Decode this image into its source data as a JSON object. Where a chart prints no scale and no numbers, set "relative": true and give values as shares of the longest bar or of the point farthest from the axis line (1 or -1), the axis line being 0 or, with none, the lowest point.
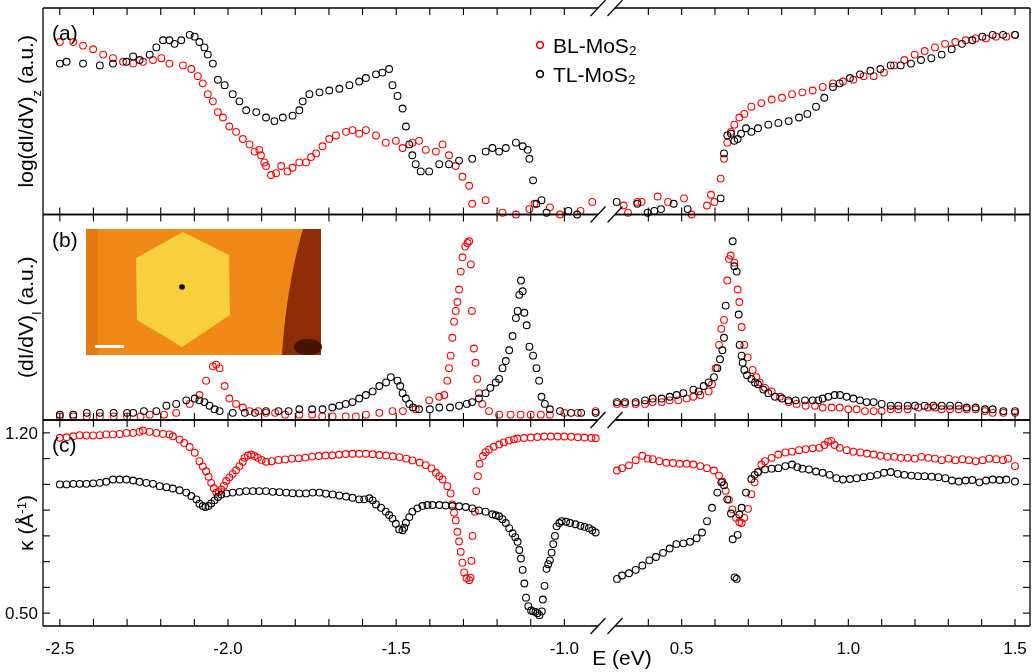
{
  "chart_data": [
    {
      "type": "scatter",
      "title": "(a)",
      "ylabel": "log(dI/dV)$_{z}$ (a.u.)",
      "relative": true,
      "marker": "circle",
      "legend": "top right",
      "tick_labels": false,
      "xlim": [
        -2.55,
        -0.9
      ],
      "xticks": [
        -2.5,
        -2.4,
        -2.3,
        -2.2,
        -2.1,
        -2.0,
        -1.9,
        -1.8,
        -1.7,
        -1.6,
        -1.5,
        -1.4,
        -1.3,
        -1.2,
        -1.1,
        -1.0
      ],
      "series": [
        {
          "name": "BL-MoS₂",
          "color": "#ff0000",
          "x": [
            -2.5,
            -2.46,
            -2.431,
            -2.401,
            -2.371,
            -2.342,
            -2.312,
            -2.282,
            -2.253,
            -2.223,
            -2.198,
            -2.174,
            -2.134,
            -2.109,
            -2.09,
            -2.075,
            -2.06,
            -2.045,
            -2.03,
            -2.015,
            -1.996,
            -1.976,
            -1.956,
            -1.936,
            -1.921,
            -1.907,
            -1.902,
            -1.892,
            -1.887,
            -1.872,
            -1.857,
            -1.842,
            -1.823,
            -1.808,
            -1.788,
            -1.768,
            -1.753,
            -1.738,
            -1.719,
            -1.699,
            -1.679,
            -1.649,
            -1.63,
            -1.61,
            -1.59,
            -1.56,
            -1.531,
            -1.501,
            -1.481,
            -1.452,
            -1.432,
            -1.412,
            -1.382,
            -1.362,
            -1.343,
            -1.323,
            -1.303,
            -1.283,
            -1.274,
            -1.234,
            -1.184,
            -1.144,
            -1.104,
            -1.089,
            -1.043,
            -1.013,
            -0.952,
            -0.917
          ],
          "values": [
            0.96,
            0.96,
            0.94,
            0.92,
            0.89,
            0.87,
            0.85,
            0.84,
            0.85,
            0.86,
            0.87,
            0.84,
            0.83,
            0.81,
            0.77,
            0.73,
            0.67,
            0.63,
            0.57,
            0.54,
            0.49,
            0.46,
            0.42,
            0.39,
            0.35,
            0.36,
            0.33,
            0.29,
            0.27,
            0.22,
            0.23,
            0.27,
            0.24,
            0.26,
            0.29,
            0.29,
            0.32,
            0.34,
            0.38,
            0.42,
            0.44,
            0.46,
            0.47,
            0.45,
            0.47,
            0.44,
            0.4,
            0.41,
            0.37,
            0.4,
            0.41,
            0.36,
            0.35,
            0.39,
            0.33,
            0.27,
            0.21,
            0.16,
            0.06,
            0.08,
            0.01,
            0.0,
            0.03,
            0.06,
            0.04,
            0.0,
            0.02,
            0.07
          ]
        },
        {
          "name": "TL-MoS₂",
          "color": "#000000",
          "x": [
            -2.5,
            -2.48,
            -2.431,
            -2.381,
            -2.342,
            -2.302,
            -2.282,
            -2.263,
            -2.233,
            -2.213,
            -2.193,
            -2.174,
            -2.159,
            -2.139,
            -2.114,
            -2.099,
            -2.085,
            -2.07,
            -2.06,
            -2.045,
            -2.03,
            -2.01,
            -1.986,
            -1.966,
            -1.946,
            -1.916,
            -1.887,
            -1.862,
            -1.837,
            -1.808,
            -1.788,
            -1.778,
            -1.758,
            -1.728,
            -1.699,
            -1.669,
            -1.639,
            -1.61,
            -1.59,
            -1.56,
            -1.541,
            -1.521,
            -1.511,
            -1.496,
            -1.481,
            -1.471,
            -1.461,
            -1.452,
            -1.442,
            -1.427,
            -1.402,
            -1.372,
            -1.343,
            -1.313,
            -1.274,
            -1.234,
            -1.214,
            -1.194,
            -1.174,
            -1.144,
            -1.124,
            -1.109,
            -1.104,
            -1.093,
            -1.083,
            -1.068,
            -1.053,
            -0.988,
            -0.962
          ],
          "values": [
            0.84,
            0.85,
            0.84,
            0.83,
            0.84,
            0.85,
            0.88,
            0.86,
            0.89,
            0.93,
            0.97,
            0.97,
            0.95,
            0.97,
            1,
            0.99,
            0.96,
            0.93,
            0.89,
            0.84,
            0.75,
            0.72,
            0.67,
            0.63,
            0.58,
            0.57,
            0.54,
            0.52,
            0.54,
            0.55,
            0.58,
            0.63,
            0.67,
            0.68,
            0.69,
            0.7,
            0.72,
            0.74,
            0.76,
            0.78,
            0.79,
            0.81,
            0.72,
            0.66,
            0.59,
            0.49,
            0.39,
            0.33,
            0.28,
            0.24,
            0.24,
            0.28,
            0.28,
            0.3,
            0.31,
            0.35,
            0.37,
            0.35,
            0.37,
            0.4,
            0.38,
            0.36,
            0.31,
            0.19,
            0.06,
            0.08,
            0.01,
            0.02,
            0.0
          ]
        }
      ]
    },
    {
      "type": "scatter",
      "relative": true,
      "marker": "circle",
      "tick_labels": false,
      "xlim": [
        0.3,
        1.545
      ],
      "xticks": [
        0.4,
        0.5,
        0.6,
        0.7,
        0.8,
        0.9,
        1.0,
        1.1,
        1.2,
        1.3,
        1.4,
        1.5
      ],
      "series": [
        {
          "color": "#ff0000",
          "x": [
            0.326,
            0.339,
            0.367,
            0.38,
            0.428,
            0.459,
            0.507,
            0.53,
            0.576,
            0.588,
            0.598,
            0.617,
            0.627,
            0.637,
            0.648,
            0.658,
            0.673,
            0.688,
            0.709,
            0.739,
            0.77,
            0.801,
            0.831,
            0.862,
            0.893,
            0.923,
            0.954,
            0.984,
            1.015,
            1.046,
            1.076,
            1.107,
            1.137,
            1.168,
            1.199,
            1.229,
            1.26,
            1.29,
            1.321,
            1.352,
            1.382,
            1.413,
            1.443,
            1.474,
            1.5
          ],
          "values": [
            0.05,
            0.01,
            0.07,
            0.07,
            0.1,
            0.07,
            0.09,
            0.0,
            0.05,
            0.11,
            0.07,
            0.2,
            0.31,
            0.4,
            0.46,
            0.5,
            0.54,
            0.56,
            0.6,
            0.62,
            0.64,
            0.65,
            0.67,
            0.68,
            0.69,
            0.71,
            0.73,
            0.74,
            0.75,
            0.77,
            0.77,
            0.79,
            0.83,
            0.86,
            0.89,
            0.91,
            0.93,
            0.95,
            0.96,
            0.97,
            0.98,
            0.98,
            0.99,
            0.99,
            1
          ]
        },
        {
          "color": "#000000",
          "x": [
            0.305,
            0.367,
            0.398,
            0.418,
            0.438,
            0.476,
            0.518,
            0.617,
            0.627,
            0.637,
            0.648,
            0.658,
            0.668,
            0.678,
            0.693,
            0.709,
            0.729,
            0.76,
            0.79,
            0.821,
            0.852,
            0.877,
            0.903,
            0.928,
            0.954,
            0.974,
            1.005,
            1.035,
            1.066,
            1.096,
            1.127,
            1.157,
            1.188,
            1.218,
            1.249,
            1.28,
            1.31,
            1.341,
            1.372,
            1.402,
            1.433,
            1.464,
            1.5
          ],
          "values": [
            0.07,
            0.06,
            0.01,
            0.02,
            0.03,
            0.06,
            0.03,
            0.09,
            0.34,
            0.44,
            0.45,
            0.41,
            0.42,
            0.45,
            0.48,
            0.46,
            0.48,
            0.5,
            0.51,
            0.52,
            0.54,
            0.56,
            0.6,
            0.65,
            0.71,
            0.73,
            0.76,
            0.78,
            0.8,
            0.81,
            0.83,
            0.83,
            0.84,
            0.86,
            0.87,
            0.89,
            0.92,
            0.95,
            0.97,
            0.99,
            1,
            1,
            1
          ]
        }
      ]
    },
    {
      "type": "scatter",
      "title": "(b)",
      "ylabel": "(dI/dV)$_{I}$ (a.u.)",
      "relative": true,
      "marker": "circle",
      "tick_labels": false,
      "xlim": [
        -2.55,
        -0.9
      ],
      "xticks": [
        -2.5,
        -2.4,
        -2.3,
        -2.2,
        -2.1,
        -2.0,
        -1.9,
        -1.8,
        -1.7,
        -1.6,
        -1.5,
        -1.4,
        -1.3,
        -1.2,
        -1.1,
        -1.0
      ],
      "series": [
        {
          "color": "#ff0000",
          "x": [
            -2.5,
            -2.46,
            -2.42,
            -2.381,
            -2.34,
            -2.3,
            -2.26,
            -2.233,
            -2.19,
            -2.154,
            -2.114,
            -2.085,
            -2.065,
            -2.045,
            -2.035,
            -2.025,
            -2.01,
            -1.996,
            -1.976,
            -1.956,
            -1.936,
            -1.91,
            -1.887,
            -1.86,
            -1.83,
            -1.788,
            -1.75,
            -1.72,
            -1.689,
            -1.65,
            -1.62,
            -1.59,
            -1.55,
            -1.511,
            -1.48,
            -1.442,
            -1.402,
            -1.372,
            -1.357,
            -1.348,
            -1.343,
            -1.338,
            -1.333,
            -1.328,
            -1.323,
            -1.318,
            -1.313,
            -1.308,
            -1.303,
            -1.295,
            -1.288,
            -1.283,
            -1.278,
            -1.275,
            -1.269,
            -1.264,
            -1.259,
            -1.254,
            -1.244,
            -1.224,
            -1.194,
            -1.16,
            -1.13,
            -1.1,
            -1.07,
            -1.043,
            -1.0,
            -0.96,
            -0.907
          ],
          "values": [
            0.02,
            0.02,
            0.02,
            0.02,
            0.02,
            0.02,
            0.02,
            0.03,
            0.03,
            0.04,
            0.09,
            0.14,
            0.22,
            0.3,
            0.31,
            0.29,
            0.19,
            0.12,
            0.09,
            0.07,
            0.05,
            0.05,
            0.04,
            0.04,
            0.03,
            0.03,
            0.03,
            0.02,
            0.02,
            0.02,
            0.02,
            0.03,
            0.04,
            0.05,
            0.05,
            0.06,
            0.11,
            0.13,
            0.14,
            0.22,
            0.29,
            0.36,
            0.46,
            0.55,
            0.61,
            0.66,
            0.73,
            0.83,
            0.91,
            0.97,
            0.99,
            1,
            0.87,
            0.61,
            0.4,
            0.32,
            0.23,
            0.15,
            0.09,
            0.05,
            0.03,
            0.03,
            0.03,
            0.03,
            0.03,
            0.03,
            0.04,
            0.04,
            0.05
          ]
        },
        {
          "color": "#000000",
          "x": [
            -2.5,
            -2.46,
            -2.42,
            -2.381,
            -2.34,
            -2.3,
            -2.282,
            -2.25,
            -2.213,
            -2.183,
            -2.154,
            -2.124,
            -2.099,
            -2.085,
            -2.07,
            -2.055,
            -2.04,
            -2.025,
            -1.986,
            -1.95,
            -1.92,
            -1.887,
            -1.85,
            -1.82,
            -1.788,
            -1.75,
            -1.719,
            -1.69,
            -1.669,
            -1.65,
            -1.63,
            -1.61,
            -1.59,
            -1.57,
            -1.55,
            -1.53,
            -1.516,
            -1.496,
            -1.488,
            -1.481,
            -1.471,
            -1.461,
            -1.45,
            -1.432,
            -1.4,
            -1.372,
            -1.34,
            -1.313,
            -1.29,
            -1.274,
            -1.254,
            -1.234,
            -1.22,
            -1.204,
            -1.194,
            -1.184,
            -1.174,
            -1.164,
            -1.154,
            -1.144,
            -1.139,
            -1.134,
            -1.129,
            -1.124,
            -1.119,
            -1.112,
            -1.104,
            -1.093,
            -1.083,
            -1.075,
            -1.068,
            -1.058,
            -1.043,
            -1.013,
            -0.98,
            -0.95,
            -0.907
          ],
          "values": [
            0.03,
            0.03,
            0.04,
            0.04,
            0.04,
            0.04,
            0.04,
            0.05,
            0.05,
            0.08,
            0.09,
            0.11,
            0.12,
            0.11,
            0.1,
            0.08,
            0.06,
            0.05,
            0.04,
            0.04,
            0.04,
            0.05,
            0.05,
            0.05,
            0.06,
            0.06,
            0.06,
            0.07,
            0.08,
            0.09,
            0.1,
            0.12,
            0.14,
            0.16,
            0.19,
            0.21,
            0.24,
            0.22,
            0.19,
            0.15,
            0.12,
            0.09,
            0.07,
            0.06,
            0.06,
            0.07,
            0.07,
            0.08,
            0.09,
            0.1,
            0.12,
            0.15,
            0.18,
            0.21,
            0.23,
            0.29,
            0.33,
            0.39,
            0.47,
            0.57,
            0.61,
            0.7,
            0.78,
            0.72,
            0.6,
            0.53,
            0.41,
            0.36,
            0.29,
            0.22,
            0.13,
            0.09,
            0.06,
            0.05,
            0.04,
            0.04,
            0.04
          ]
        }
      ]
    },
    {
      "type": "scatter",
      "relative": true,
      "marker": "circle",
      "tick_labels": false,
      "xlim": [
        0.3,
        1.545
      ],
      "xticks": [
        0.4,
        0.5,
        0.6,
        0.7,
        0.8,
        0.9,
        1.0,
        1.1,
        1.2,
        1.3,
        1.4,
        1.5
      ],
      "series": [
        {
          "color": "#ff0000",
          "x": [
            0.306,
            0.33,
            0.362,
            0.39,
            0.413,
            0.44,
            0.464,
            0.49,
            0.515,
            0.535,
            0.556,
            0.581,
            0.591,
            0.602,
            0.612,
            0.619,
            0.627,
            0.637,
            0.642,
            0.647,
            0.658,
            0.668,
            0.673,
            0.68,
            0.688,
            0.698,
            0.713,
            0.724,
            0.734,
            0.75,
            0.77,
            0.795,
            0.821,
            0.845,
            0.872,
            0.9,
            0.923,
            0.95,
            0.974,
            1.0,
            1.025,
            1.05,
            1.076,
            1.1,
            1.127,
            1.15,
            1.178,
            1.21,
            1.239,
            1.26,
            1.28,
            1.305,
            1.331,
            1.355,
            1.382,
            1.41,
            1.433,
            1.465,
            1.5
          ],
          "values": [
            0.09,
            0.09,
            0.09,
            0.09,
            0.1,
            0.1,
            0.11,
            0.11,
            0.12,
            0.13,
            0.14,
            0.16,
            0.2,
            0.29,
            0.42,
            0.51,
            0.56,
            0.78,
            0.9,
            0.92,
            0.88,
            0.73,
            0.66,
            0.52,
            0.42,
            0.35,
            0.28,
            0.24,
            0.21,
            0.18,
            0.16,
            0.13,
            0.1,
            0.09,
            0.08,
            0.08,
            0.07,
            0.07,
            0.07,
            0.06,
            0.06,
            0.05,
            0.05,
            0.05,
            0.06,
            0.06,
            0.06,
            0.07,
            0.07,
            0.07,
            0.06,
            0.06,
            0.06,
            0.06,
            0.06,
            0.05,
            0.04,
            0.04,
            0.04
          ]
        },
        {
          "color": "#000000",
          "x": [
            0.306,
            0.33,
            0.362,
            0.39,
            0.413,
            0.44,
            0.464,
            0.485,
            0.505,
            0.535,
            0.551,
            0.566,
            0.581,
            0.597,
            0.607,
            0.615,
            0.622,
            0.627,
            0.632,
            0.653,
            0.658,
            0.665,
            0.671,
            0.674,
            0.68,
            0.683,
            0.688,
            0.696,
            0.709,
            0.72,
            0.729,
            0.745,
            0.76,
            0.78,
            0.801,
            0.82,
            0.842,
            0.87,
            0.893,
            0.91,
            0.923,
            0.94,
            0.959,
            0.975,
            0.995,
            1.015,
            1.035,
            1.055,
            1.076,
            1.1,
            1.127,
            1.15,
            1.178,
            1.2,
            1.229,
            1.255,
            1.28,
            1.305,
            1.331,
            1.355,
            1.382,
            1.41,
            1.433,
            1.465,
            1.5
          ],
          "values": [
            0.1,
            0.1,
            0.1,
            0.11,
            0.12,
            0.12,
            0.13,
            0.14,
            0.15,
            0.17,
            0.16,
            0.19,
            0.21,
            0.24,
            0.29,
            0.34,
            0.39,
            0.46,
            0.64,
            1,
            0.86,
            0.83,
            0.59,
            0.42,
            0.36,
            0.32,
            0.28,
            0.25,
            0.23,
            0.21,
            0.2,
            0.17,
            0.15,
            0.13,
            0.12,
            0.11,
            0.11,
            0.11,
            0.11,
            0.11,
            0.12,
            0.13,
            0.14,
            0.14,
            0.13,
            0.12,
            0.11,
            0.1,
            0.1,
            0.09,
            0.08,
            0.08,
            0.08,
            0.08,
            0.08,
            0.08,
            0.08,
            0.08,
            0.08,
            0.07,
            0.07,
            0.06,
            0.06,
            0.05,
            0.05
          ]
        }
      ]
    },
    {
      "type": "scatter",
      "title": "(c)",
      "ylabel": "κ (Å$^{-1}$)",
      "marker": "circle",
      "xlim": [
        -2.55,
        -0.9
      ],
      "ylim": [
        0.45,
        1.25
      ],
      "xticks": [
        {
          "value": -2.5,
          "label": "-2.5"
        },
        {
          "value": -2.4,
          "label": null
        },
        {
          "value": -2.3,
          "label": null
        },
        {
          "value": -2.2,
          "label": null
        },
        {
          "value": -2.1,
          "label": null
        },
        {
          "value": -2.0,
          "label": "-2.0"
        },
        {
          "value": -1.9,
          "label": null
        },
        {
          "value": -1.8,
          "label": null
        },
        {
          "value": -1.7,
          "label": null
        },
        {
          "value": -1.6,
          "label": null
        },
        {
          "value": -1.5,
          "label": "-1.5"
        },
        {
          "value": -1.4,
          "label": null
        },
        {
          "value": -1.3,
          "label": null
        },
        {
          "value": -1.2,
          "label": null
        },
        {
          "value": -1.1,
          "label": null
        },
        {
          "value": -1.0,
          "label": "-1.0"
        }
      ],
      "yticks": [
        {
          "value": 1.2,
          "label": "1.20"
        },
        {
          "value": 1.1,
          "label": null
        },
        {
          "value": 1.0,
          "label": null
        },
        {
          "value": 0.9,
          "label": null
        },
        {
          "value": 0.8,
          "label": null
        },
        {
          "value": 0.7,
          "label": null
        },
        {
          "value": 0.6,
          "label": null
        },
        {
          "value": 0.5,
          "label": "0.50"
        }
      ],
      "series": [
        {
          "color": "#ff0000",
          "x": [
            -2.5,
            -2.48,
            -2.46,
            -2.441,
            -2.421,
            -2.401,
            -2.381,
            -2.362,
            -2.342,
            -2.322,
            -2.302,
            -2.282,
            -2.263,
            -2.253,
            -2.233,
            -2.213,
            -2.193,
            -2.174,
            -2.164,
            -2.144,
            -2.13,
            -2.114,
            -2.099,
            -2.085,
            -2.075,
            -2.065,
            -2.058,
            -2.05,
            -2.042,
            -2.035,
            -2.028,
            -2.02,
            -2.012,
            -2.005,
            -1.996,
            -1.986,
            -1.976,
            -1.966,
            -1.956,
            -1.951,
            -1.941,
            -1.931,
            -1.921,
            -1.911,
            -1.9,
            -1.887,
            -1.87,
            -1.85,
            -1.83,
            -1.81,
            -1.79,
            -1.77,
            -1.75,
            -1.73,
            -1.71,
            -1.69,
            -1.67,
            -1.65,
            -1.63,
            -1.61,
            -1.59,
            -1.57,
            -1.55,
            -1.53,
            -1.51,
            -1.49,
            -1.47,
            -1.452,
            -1.43,
            -1.412,
            -1.395,
            -1.382,
            -1.372,
            -1.362,
            -1.348,
            -1.338,
            -1.333,
            -1.328,
            -1.323,
            -1.318,
            -1.313,
            -1.308,
            -1.303,
            -1.298,
            -1.291,
            -1.283,
            -1.279,
            -1.276,
            -1.273,
            -1.266,
            -1.262,
            -1.257,
            -1.252,
            -1.242,
            -1.234,
            -1.224,
            -1.21,
            -1.194,
            -1.18,
            -1.165,
            -1.15,
            -1.14,
            -1.12,
            -1.1,
            -1.08,
            -1.06,
            -1.04,
            -1.02,
            -1.0,
            -0.98,
            -0.96,
            -0.94,
            -0.92,
            -0.907
          ],
          "values": [
            1.181,
            1.183,
            1.187,
            1.191,
            1.19,
            1.19,
            1.191,
            1.194,
            1.194,
            1.196,
            1.2,
            1.2,
            1.204,
            1.209,
            1.204,
            1.2,
            1.196,
            1.194,
            1.187,
            1.174,
            1.161,
            1.145,
            1.123,
            1.09,
            1.07,
            1.051,
            1.03,
            1.006,
            0.985,
            0.968,
            0.97,
            0.98,
            0.995,
            1.013,
            1.027,
            1.041,
            1.055,
            1.071,
            1.088,
            1.103,
            1.112,
            1.116,
            1.11,
            1.103,
            1.095,
            1.088,
            1.09,
            1.095,
            1.097,
            1.1,
            1.101,
            1.104,
            1.108,
            1.11,
            1.112,
            1.113,
            1.115,
            1.118,
            1.119,
            1.119,
            1.119,
            1.117,
            1.114,
            1.112,
            1.109,
            1.106,
            1.1,
            1.093,
            1.085,
            1.075,
            1.062,
            1.045,
            1.032,
            1.019,
            0.993,
            0.965,
            0.922,
            0.89,
            0.86,
            0.816,
            0.778,
            0.738,
            0.696,
            0.658,
            0.636,
            0.628,
            0.638,
            0.703,
            0.8,
            0.894,
            0.974,
            1.032,
            1.08,
            1.11,
            1.125,
            1.135,
            1.146,
            1.155,
            1.163,
            1.17,
            1.175,
            1.178,
            1.18,
            1.182,
            1.184,
            1.186,
            1.186,
            1.186,
            1.186,
            1.185,
            1.183,
            1.182,
            1.18,
            1.179
          ]
        },
        {
          "color": "#000000",
          "x": [
            -2.5,
            -2.48,
            -2.46,
            -2.441,
            -2.421,
            -2.401,
            -2.381,
            -2.362,
            -2.342,
            -2.322,
            -2.302,
            -2.282,
            -2.263,
            -2.243,
            -2.223,
            -2.203,
            -2.183,
            -2.164,
            -2.144,
            -2.124,
            -2.109,
            -2.094,
            -2.085,
            -2.075,
            -2.067,
            -2.058,
            -2.05,
            -2.04,
            -2.03,
            -2.02,
            -2.005,
            -1.986,
            -1.966,
            -1.946,
            -1.926,
            -1.907,
            -1.887,
            -1.867,
            -1.847,
            -1.827,
            -1.808,
            -1.788,
            -1.768,
            -1.748,
            -1.728,
            -1.709,
            -1.689,
            -1.669,
            -1.649,
            -1.63,
            -1.61,
            -1.595,
            -1.58,
            -1.57,
            -1.56,
            -1.545,
            -1.531,
            -1.521,
            -1.511,
            -1.501,
            -1.491,
            -1.481,
            -1.476,
            -1.471,
            -1.461,
            -1.452,
            -1.437,
            -1.422,
            -1.407,
            -1.392,
            -1.372,
            -1.353,
            -1.333,
            -1.313,
            -1.293,
            -1.274,
            -1.254,
            -1.234,
            -1.214,
            -1.204,
            -1.194,
            -1.184,
            -1.174,
            -1.164,
            -1.154,
            -1.146,
            -1.139,
            -1.134,
            -1.129,
            -1.124,
            -1.119,
            -1.114,
            -1.107,
            -1.099,
            -1.093,
            -1.086,
            -1.08,
            -1.074,
            -1.067,
            -1.064,
            -1.059,
            -1.053,
            -1.048,
            -1.043,
            -1.038,
            -1.033,
            -1.028,
            -1.023,
            -1.015,
            -1.008,
            -0.995,
            -0.983,
            -0.967,
            -0.952,
            -0.94,
            -0.927,
            -0.917,
            -0.907
          ],
          "values": [
            1.0,
            1.0,
            1.002,
            1.002,
            1.002,
            1.004,
            1.006,
            1.01,
            1.019,
            1.019,
            1.019,
            1.015,
            1.01,
            1.006,
            1.002,
            0.993,
            0.989,
            0.984,
            0.977,
            0.968,
            0.955,
            0.942,
            0.925,
            0.916,
            0.912,
            0.916,
            0.926,
            0.938,
            0.951,
            0.961,
            0.965,
            0.968,
            0.971,
            0.974,
            0.974,
            0.974,
            0.974,
            0.971,
            0.97,
            0.968,
            0.966,
            0.965,
            0.965,
            0.968,
            0.968,
            0.964,
            0.961,
            0.957,
            0.953,
            0.948,
            0.942,
            0.942,
            0.946,
            0.938,
            0.922,
            0.909,
            0.894,
            0.881,
            0.867,
            0.847,
            0.825,
            0.822,
            0.832,
            0.851,
            0.873,
            0.894,
            0.907,
            0.916,
            0.92,
            0.92,
            0.92,
            0.918,
            0.916,
            0.915,
            0.912,
            0.907,
            0.899,
            0.894,
            0.884,
            0.88,
            0.876,
            0.865,
            0.85,
            0.83,
            0.81,
            0.795,
            0.777,
            0.745,
            0.712,
            0.668,
            0.615,
            0.56,
            0.527,
            0.51,
            0.507,
            0.505,
            0.5,
            0.492,
            0.507,
            0.553,
            0.606,
            0.672,
            0.69,
            0.705,
            0.735,
            0.768,
            0.8,
            0.837,
            0.85,
            0.857,
            0.855,
            0.85,
            0.845,
            0.839,
            0.835,
            0.83,
            0.822,
            0.813
          ]
        }
      ]
    },
    {
      "type": "scatter",
      "xlabel": "E (eV)",
      "marker": "circle",
      "tick_labels": "x",
      "xlim": [
        0.3,
        1.545
      ],
      "ylim": [
        0.45,
        1.25
      ],
      "xticks": [
        {
          "value": 0.4,
          "label": null
        },
        {
          "value": 0.5,
          "label": "0.5"
        },
        {
          "value": 0.6,
          "label": null
        },
        {
          "value": 0.7,
          "label": null
        },
        {
          "value": 0.8,
          "label": null
        },
        {
          "value": 0.9,
          "label": null
        },
        {
          "value": 1.0,
          "label": "1.0"
        },
        {
          "value": 1.1,
          "label": null
        },
        {
          "value": 1.2,
          "label": null
        },
        {
          "value": 1.3,
          "label": null
        },
        {
          "value": 1.4,
          "label": null
        },
        {
          "value": 1.5,
          "label": "1.5"
        }
      ],
      "yticks": [
        1.2,
        1.1,
        1.0,
        0.9,
        0.8,
        0.7,
        0.6,
        0.5
      ],
      "series": [
        {
          "color": "#ff0000",
          "x": [
            0.306,
            0.321,
            0.342,
            0.362,
            0.382,
            0.398,
            0.413,
            0.433,
            0.454,
            0.474,
            0.494,
            0.515,
            0.535,
            0.556,
            0.576,
            0.597,
            0.612,
            0.622,
            0.632,
            0.642,
            0.652,
            0.663,
            0.673,
            0.68,
            0.688,
            0.699,
            0.709,
            0.719,
            0.729,
            0.739,
            0.75,
            0.77,
            0.79,
            0.811,
            0.831,
            0.852,
            0.872,
            0.893,
            0.913,
            0.928,
            0.939,
            0.949,
            0.959,
            0.974,
            0.995,
            1.015,
            1.036,
            1.056,
            1.076,
            1.097,
            1.117,
            1.138,
            1.158,
            1.178,
            1.199,
            1.219,
            1.24,
            1.26,
            1.28,
            1.301,
            1.321,
            1.342,
            1.362,
            1.382,
            1.403,
            1.423,
            1.444,
            1.464,
            1.479,
            1.5
          ],
          "values": [
            1.054,
            1.063,
            1.074,
            1.094,
            1.111,
            1.1,
            1.098,
            1.09,
            1.084,
            1.083,
            1.08,
            1.08,
            1.077,
            1.071,
            1.063,
            1.054,
            1.034,
            1.011,
            0.975,
            0.94,
            0.903,
            0.87,
            0.853,
            0.85,
            0.87,
            0.905,
            0.962,
            1.008,
            1.048,
            1.077,
            1.09,
            1.103,
            1.116,
            1.124,
            1.127,
            1.133,
            1.137,
            1.14,
            1.142,
            1.153,
            1.166,
            1.169,
            1.153,
            1.142,
            1.133,
            1.127,
            1.124,
            1.12,
            1.116,
            1.111,
            1.107,
            1.107,
            1.103,
            1.103,
            1.1,
            1.107,
            1.103,
            1.1,
            1.094,
            1.1,
            1.094,
            1.098,
            1.094,
            1.09,
            1.094,
            1.1,
            1.098,
            1.094,
            1.1,
            1.071
          ]
        },
        {
          "color": "#000000",
          "x": [
            0.306,
            0.321,
            0.342,
            0.362,
            0.382,
            0.403,
            0.423,
            0.444,
            0.464,
            0.484,
            0.505,
            0.525,
            0.545,
            0.561,
            0.576,
            0.591,
            0.607,
            0.619,
            0.627,
            0.637,
            0.648,
            0.653,
            0.659,
            0.665,
            0.668,
            0.673,
            0.68,
            0.693,
            0.709,
            0.719,
            0.729,
            0.75,
            0.77,
            0.79,
            0.811,
            0.831,
            0.847,
            0.862,
            0.882,
            0.903,
            0.923,
            0.944,
            0.964,
            0.984,
            1.005,
            1.025,
            1.046,
            1.066,
            1.087,
            1.107,
            1.127,
            1.148,
            1.168,
            1.189,
            1.209,
            1.229,
            1.25,
            1.27,
            1.291,
            1.311,
            1.331,
            1.352,
            1.372,
            1.393,
            1.413,
            1.433,
            1.454,
            1.474,
            1.5
          ],
          "values": [
            0.633,
            0.646,
            0.655,
            0.668,
            0.685,
            0.705,
            0.718,
            0.734,
            0.751,
            0.768,
            0.771,
            0.777,
            0.791,
            0.813,
            0.857,
            0.909,
            0.968,
            1.008,
            0.997,
            0.942,
            0.887,
            0.787,
            0.639,
            0.633,
            0.804,
            0.883,
            0.909,
            0.968,
            1.021,
            1.037,
            1.048,
            1.058,
            1.061,
            1.063,
            1.071,
            1.077,
            1.067,
            1.061,
            1.058,
            1.05,
            1.045,
            1.037,
            1.024,
            1.019,
            1.021,
            1.024,
            1.028,
            1.032,
            1.037,
            1.045,
            1.048,
            1.041,
            1.037,
            1.034,
            1.032,
            1.032,
            1.03,
            1.028,
            1.024,
            1.015,
            1.011,
            1.015,
            1.017,
            1.008,
            1.015,
            1.019,
            1.017,
            1.019,
            1.011
          ]
        }
      ]
    }
  ]
}
